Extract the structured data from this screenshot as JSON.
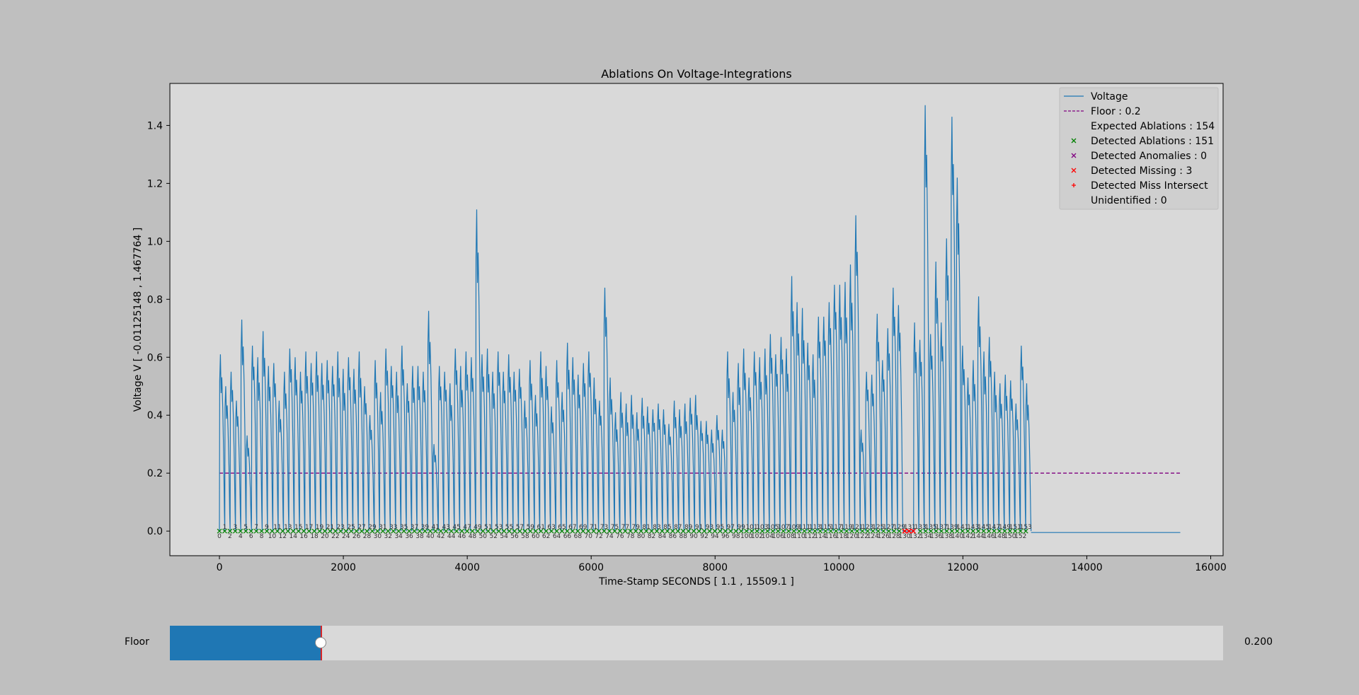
{
  "window": {
    "background": "#bfbfbf"
  },
  "chart_data": {
    "type": "line",
    "title": "Ablations On Voltage-Integrations",
    "xlabel": "Time-Stamp SECONDS [ 1.1 , 15509.1 ]",
    "ylabel": "Voltage V [ -0.01125148 , 1.467764 ]",
    "xlim": [
      -800,
      16200
    ],
    "ylim": [
      -0.085,
      1.545
    ],
    "xticks": [
      0,
      2000,
      4000,
      6000,
      8000,
      10000,
      12000,
      14000,
      16000
    ],
    "yticks": [
      0.0,
      0.2,
      0.4,
      0.6,
      0.8,
      1.0,
      1.2,
      1.4
    ],
    "grid": false,
    "legend_position": "top-right",
    "colors": {
      "voltage": "#1f77b4",
      "floor": "#800080",
      "detected": "#008000",
      "anomaly": "#800080",
      "missing": "#ff0000",
      "axes_bg": "#d9d9d9"
    },
    "series": [
      {
        "name": "Voltage",
        "style": "line",
        "pulse_peaks": [
          0.61,
          0.5,
          0.55,
          0.45,
          0.73,
          0.33,
          0.64,
          0.6,
          0.69,
          0.57,
          0.58,
          0.45,
          0.55,
          0.63,
          0.6,
          0.55,
          0.62,
          0.58,
          0.62,
          0.58,
          0.59,
          0.57,
          0.62,
          0.56,
          0.6,
          0.56,
          0.62,
          0.5,
          0.4,
          0.59,
          0.48,
          0.63,
          0.57,
          0.55,
          0.64,
          0.51,
          0.57,
          0.57,
          0.55,
          0.76,
          0.3,
          0.57,
          0.55,
          0.51,
          0.63,
          0.57,
          0.62,
          0.6,
          1.11,
          0.61,
          0.63,
          0.55,
          0.62,
          0.55,
          0.61,
          0.55,
          0.56,
          0.45,
          0.59,
          0.47,
          0.62,
          0.57,
          0.43,
          0.59,
          0.48,
          0.65,
          0.6,
          0.54,
          0.58,
          0.62,
          0.53,
          0.45,
          0.84,
          0.53,
          0.41,
          0.48,
          0.44,
          0.47,
          0.41,
          0.46,
          0.43,
          0.42,
          0.44,
          0.42,
          0.37,
          0.45,
          0.42,
          0.44,
          0.46,
          0.47,
          0.38,
          0.38,
          0.35,
          0.4,
          0.35,
          0.62,
          0.48,
          0.58,
          0.63,
          0.53,
          0.62,
          0.6,
          0.63,
          0.68,
          0.61,
          0.67,
          0.63,
          0.88,
          0.79,
          0.77,
          0.65,
          0.61,
          0.74,
          0.74,
          0.79,
          0.85,
          0.85,
          0.86,
          0.92,
          1.09,
          0.35,
          0.55,
          0.54,
          0.75,
          0.59,
          0.7,
          0.84,
          0.78,
          1.35,
          0.19,
          0.72,
          0.66,
          1.47,
          0.68,
          0.93,
          0.72,
          1.01,
          1.43,
          1.22,
          0.64,
          0.53,
          0.59,
          0.81,
          0.62,
          0.67,
          0.55,
          0.51,
          0.54,
          0.52,
          0.44,
          0.64,
          0.51
        ]
      },
      {
        "name": "Floor : 0.2",
        "style": "dashed",
        "y": 0.2,
        "x": [
          0,
          15509.1
        ]
      },
      {
        "name": "Expected Ablations : 154",
        "style": "none"
      },
      {
        "name": "Detected Ablations : 151",
        "style": "x-marker"
      },
      {
        "name": "Detected Anomalies : 0",
        "style": "x-marker"
      },
      {
        "name": "Detected Missing : 3",
        "style": "x-marker",
        "x": [
          11060,
          11130,
          11200
        ]
      },
      {
        "name": "Detected Miss Intersect",
        "style": "plus-marker"
      },
      {
        "name": "Unidentified : 0",
        "style": "none"
      }
    ],
    "pulse_x_range": [
      0,
      13100
    ],
    "gap_x_range": [
      11000,
      11260
    ],
    "trailing_flat_x": [
      13100,
      15509.1
    ],
    "trailing_flat_y": -0.005,
    "ablation_labels_top": [
      "1",
      "3",
      "5",
      "7",
      "9",
      "11",
      "13",
      "15",
      "17",
      "19",
      "21",
      "23",
      "25",
      "27",
      "29",
      "31",
      "33",
      "35",
      "37",
      "39",
      "41",
      "43",
      "45",
      "47",
      "49",
      "51",
      "53",
      "55",
      "57",
      "59",
      "61",
      "63",
      "65",
      "67",
      "69",
      "71",
      "73",
      "75",
      "77",
      "79",
      "81",
      "83",
      "85",
      "87",
      "89",
      "91",
      "93",
      "95",
      "97",
      "99",
      "101",
      "103",
      "105",
      "107",
      "109",
      "111",
      "113",
      "115",
      "117",
      "119",
      "121",
      "123",
      "125",
      "127",
      "129",
      "131",
      "133",
      "135",
      "137",
      "139",
      "141",
      "143",
      "145",
      "147",
      "149",
      "151",
      "153"
    ],
    "ablation_labels_bottom": [
      "0",
      "2",
      "4",
      "6",
      "8",
      "10",
      "12",
      "14",
      "16",
      "18",
      "20",
      "22",
      "24",
      "26",
      "28",
      "30",
      "32",
      "34",
      "36",
      "38",
      "40",
      "42",
      "44",
      "46",
      "48",
      "50",
      "52",
      "54",
      "56",
      "58",
      "60",
      "62",
      "64",
      "66",
      "68",
      "70",
      "72",
      "74",
      "76",
      "78",
      "80",
      "82",
      "84",
      "86",
      "88",
      "90",
      "92",
      "94",
      "96",
      "98",
      "100",
      "102",
      "104",
      "106",
      "108",
      "110",
      "112",
      "114",
      "116",
      "118",
      "120",
      "122",
      "124",
      "126",
      "128",
      "130",
      "132",
      "134",
      "136",
      "138",
      "140",
      "142",
      "144",
      "146",
      "148",
      "150",
      "152"
    ]
  },
  "slider": {
    "label": "Floor",
    "value_text": "0.200",
    "value_fraction": 0.143,
    "fill_color": "#1f77b4",
    "track_color": "#d9d9d9",
    "marker_color": "#d62728"
  }
}
